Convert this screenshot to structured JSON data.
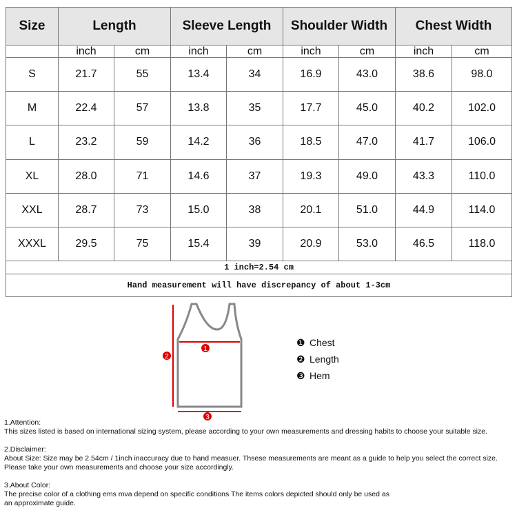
{
  "table": {
    "headers": [
      "Size",
      "Length",
      "Sleeve Length",
      "Shoulder Width",
      "Chest Width"
    ],
    "units": [
      "inch",
      "cm",
      "inch",
      "cm",
      "inch",
      "cm",
      "inch",
      "cm"
    ],
    "rows": [
      [
        "S",
        "21.7",
        "55",
        "13.4",
        "34",
        "16.9",
        "43.0",
        "38.6",
        "98.0"
      ],
      [
        "M",
        "22.4",
        "57",
        "13.8",
        "35",
        "17.7",
        "45.0",
        "40.2",
        "102.0"
      ],
      [
        "L",
        "23.2",
        "59",
        "14.2",
        "36",
        "18.5",
        "47.0",
        "41.7",
        "106.0"
      ],
      [
        "XL",
        "28.0",
        "71",
        "14.6",
        "37",
        "19.3",
        "49.0",
        "43.3",
        "110.0"
      ],
      [
        "XXL",
        "28.7",
        "73",
        "15.0",
        "38",
        "20.1",
        "51.0",
        "44.9",
        "114.0"
      ],
      [
        "XXXL",
        "29.5",
        "75",
        "15.4",
        "39",
        "20.9",
        "53.0",
        "46.5",
        "118.0"
      ]
    ],
    "conversion": "1 inch=2.54 cm",
    "note": "Hand measurement will have discrepancy of about 1-3cm"
  },
  "diagram": {
    "markers": [
      "1",
      "2",
      "3"
    ],
    "legend": [
      {
        "icon": "❶",
        "label": "Chest"
      },
      {
        "icon": "❷",
        "label": "Length"
      },
      {
        "icon": "❸",
        "label": "Hem"
      }
    ]
  },
  "notes": [
    {
      "title": "1.Attention:",
      "lines": [
        "This sizes listed is based on international sizing system, please according to your own measurements and dressing habits to choose your suitable size."
      ]
    },
    {
      "title": "2.Disclaimer:",
      "lines": [
        "About Size: Size may be 2.54cm / 1inch inaccuracy due to hand measuer. Thsese measurements are meant as a guide to help you select the correct size.",
        "Please take your own measurements and choose your size accordingly."
      ]
    },
    {
      "title": "3.About Color:",
      "lines": [
        "The precise color of a clothing ems mva depend on specific conditions The items colors depicted should only be used as",
        "an approximate guide."
      ]
    }
  ]
}
